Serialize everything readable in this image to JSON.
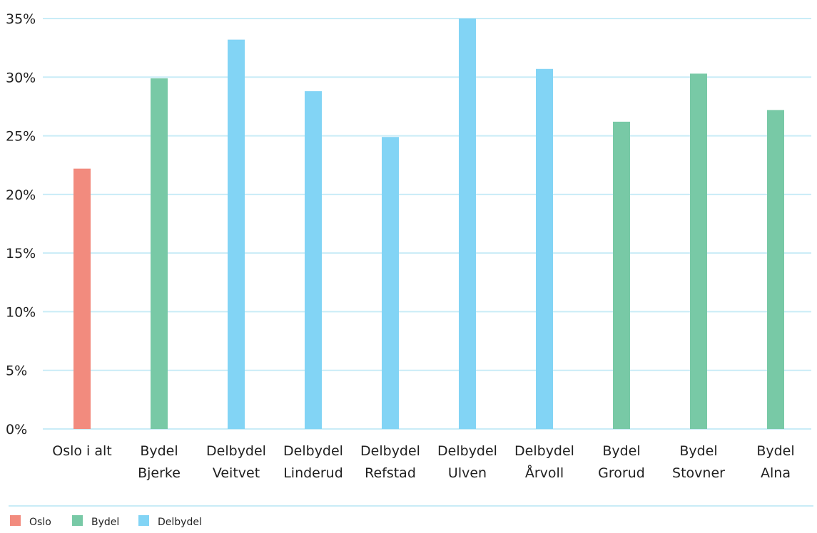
{
  "chart_data": {
    "type": "bar",
    "title": "",
    "xlabel": "",
    "ylabel": "",
    "ylim": [
      0,
      35
    ],
    "yticks": [
      "0%",
      "5%",
      "10%",
      "15%",
      "20%",
      "25%",
      "30%",
      "35%"
    ],
    "ytick_values": [
      0,
      5,
      10,
      15,
      20,
      25,
      30,
      35
    ],
    "grid": true,
    "legend_position": "bottom-left",
    "categories": [
      [
        "Oslo i alt"
      ],
      [
        "Bydel",
        "Bjerke"
      ],
      [
        "Delbydel",
        "Veitvet"
      ],
      [
        "Delbydel",
        "Linderud"
      ],
      [
        "Delbydel",
        "Refstad"
      ],
      [
        "Delbydel",
        "Ulven"
      ],
      [
        "Delbydel",
        "Årvoll"
      ],
      [
        "Bydel",
        "Grorud"
      ],
      [
        "Bydel",
        "Stovner"
      ],
      [
        "Bydel",
        "Alna"
      ]
    ],
    "values": [
      22.2,
      29.9,
      33.2,
      28.8,
      24.9,
      35.0,
      30.7,
      26.2,
      30.3,
      27.2
    ],
    "groups": [
      "Oslo",
      "Bydel",
      "Delbydel",
      "Delbydel",
      "Delbydel",
      "Delbydel",
      "Delbydel",
      "Bydel",
      "Bydel",
      "Bydel"
    ],
    "legend": [
      {
        "name": "Oslo",
        "color": "#f28b7e"
      },
      {
        "name": "Bydel",
        "color": "#78c9a6"
      },
      {
        "name": "Delbydel",
        "color": "#82d4f5"
      }
    ],
    "colors": {
      "gridline": "#c9ecf7",
      "axis_text": "#1f1f1f"
    }
  }
}
